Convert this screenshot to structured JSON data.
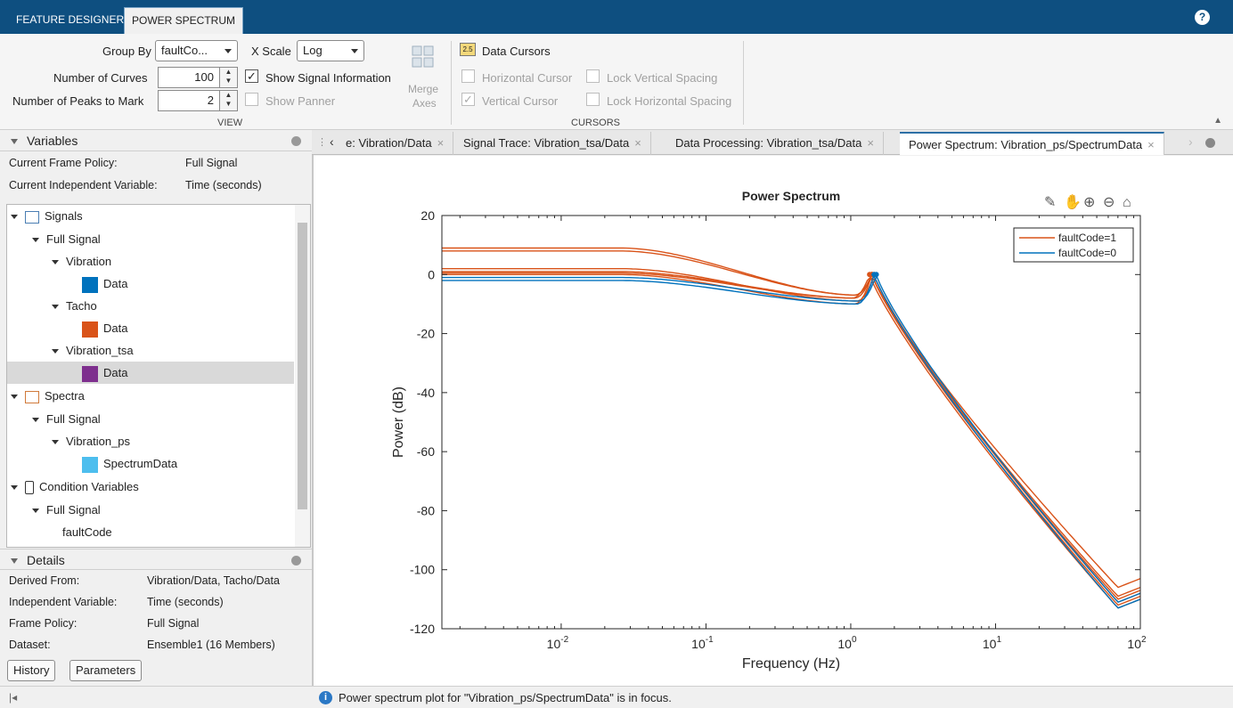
{
  "tabs": [
    {
      "label": "FEATURE DESIGNER"
    },
    {
      "label": "POWER SPECTRUM"
    }
  ],
  "help_icon": "?",
  "ribbon": {
    "group_by_label": "Group By",
    "group_by_value": "faultCo...",
    "x_scale_label": "X Scale",
    "x_scale_value": "Log",
    "num_curves_label": "Number of Curves",
    "num_curves_value": "100",
    "num_peaks_label": "Number of Peaks to Mark",
    "num_peaks_value": "2",
    "show_signal_info": "Show Signal Information",
    "show_panner": "Show Panner",
    "merge_label_1": "Merge",
    "merge_label_2": "Axes",
    "view_section": "VIEW",
    "data_cursors_badge": "2.5",
    "data_cursors": "Data Cursors",
    "horizontal_cursor": "Horizontal Cursor",
    "lock_vertical_spacing": "Lock Vertical Spacing",
    "vertical_cursor": "Vertical Cursor",
    "lock_horizontal_spacing": "Lock Horizontal Spacing",
    "cursors_section": "CURSORS"
  },
  "variables": {
    "title": "Variables",
    "frame_policy_label": "Current Frame Policy:",
    "frame_policy_value": "Full Signal",
    "indep_label": "Current Independent Variable:",
    "indep_value": "Time (seconds)",
    "tree": {
      "signals": "Signals",
      "full_signal_1": "Full Signal",
      "vibration": "Vibration",
      "data_1": "Data",
      "tacho": "Tacho",
      "data_2": "Data",
      "vibration_tsa": "Vibration_tsa",
      "data_3": "Data",
      "spectra": "Spectra",
      "full_signal_2": "Full Signal",
      "vibration_ps": "Vibration_ps",
      "spectrum_data": "SpectrumData",
      "condition_variables": "Condition Variables",
      "full_signal_3": "Full Signal",
      "fault_code": "faultCode"
    }
  },
  "details": {
    "title": "Details",
    "derived_from_label": "Derived From:",
    "derived_from_value": "Vibration/Data, Tacho/Data",
    "indep_label": "Independent Variable:",
    "indep_value": "Time (seconds)",
    "frame_policy_label": "Frame Policy:",
    "frame_policy_value": "Full Signal",
    "dataset_label": "Dataset:",
    "dataset_value": "Ensemble1 (16 Members)",
    "history_button": "History",
    "parameters_button": "Parameters"
  },
  "doc_tabs": [
    {
      "label": "e: Vibration/Data"
    },
    {
      "label": "Signal Trace: Vibration_tsa/Data"
    },
    {
      "label": "Data Processing: Vibration_tsa/Data"
    },
    {
      "label": "Power Spectrum: Vibration_ps/SpectrumData"
    }
  ],
  "status_text": "Power spectrum plot for \"Vibration_ps/SpectrumData\" is in focus.",
  "colors": {
    "fault1": "#d95319",
    "fault0": "#0072bd",
    "tacho": "#d95319",
    "vibration": "#0072bd",
    "vibration_tsa": "#7e2f8e",
    "spectrum": "#4dbeee"
  },
  "chart_data": {
    "type": "line",
    "title": "Power Spectrum",
    "xlabel": "Frequency (Hz)",
    "ylabel": "Power (dB)",
    "xscale": "log",
    "xlim": [
      0.0015,
      100
    ],
    "ylim": [
      -120,
      20
    ],
    "yticks": [
      "20",
      "0",
      "-20",
      "-40",
      "-60",
      "-80",
      "-100",
      "-120"
    ],
    "xticks": [
      {
        "base": "10",
        "exp": "-2"
      },
      {
        "base": "10",
        "exp": "-1"
      },
      {
        "base": "10",
        "exp": "0"
      },
      {
        "base": "10",
        "exp": "1"
      },
      {
        "base": "10",
        "exp": "2"
      }
    ],
    "legend_position": "top-right",
    "series": [
      {
        "name": "faultCode=1",
        "color": "#d95319",
        "low": 9,
        "min": -7,
        "peak_f": 1.4,
        "end": -103
      },
      {
        "name": "",
        "color": "#d95319",
        "low": 8,
        "min": -7,
        "peak_f": 1.4,
        "end": -106
      },
      {
        "name": "",
        "color": "#d95319",
        "low": 2,
        "min": -9,
        "peak_f": 1.45,
        "end": -108
      },
      {
        "name": "",
        "color": "#d95319",
        "low": 1,
        "min": -8,
        "peak_f": 1.4,
        "end": -109
      },
      {
        "name": "",
        "color": "#d95319",
        "low": 0.5,
        "min": -8,
        "peak_f": 1.35,
        "end": -110
      },
      {
        "name": "",
        "color": "#d95319",
        "low": 0,
        "min": -10,
        "peak_f": 1.4,
        "end": -107
      },
      {
        "name": "faultCode=0",
        "color": "#0072bd",
        "low": -2,
        "min": -10,
        "peak_f": 1.45,
        "end": -110
      },
      {
        "name": "",
        "color": "#0072bd",
        "low": -1,
        "min": -9,
        "peak_f": 1.5,
        "end": -108
      }
    ]
  }
}
